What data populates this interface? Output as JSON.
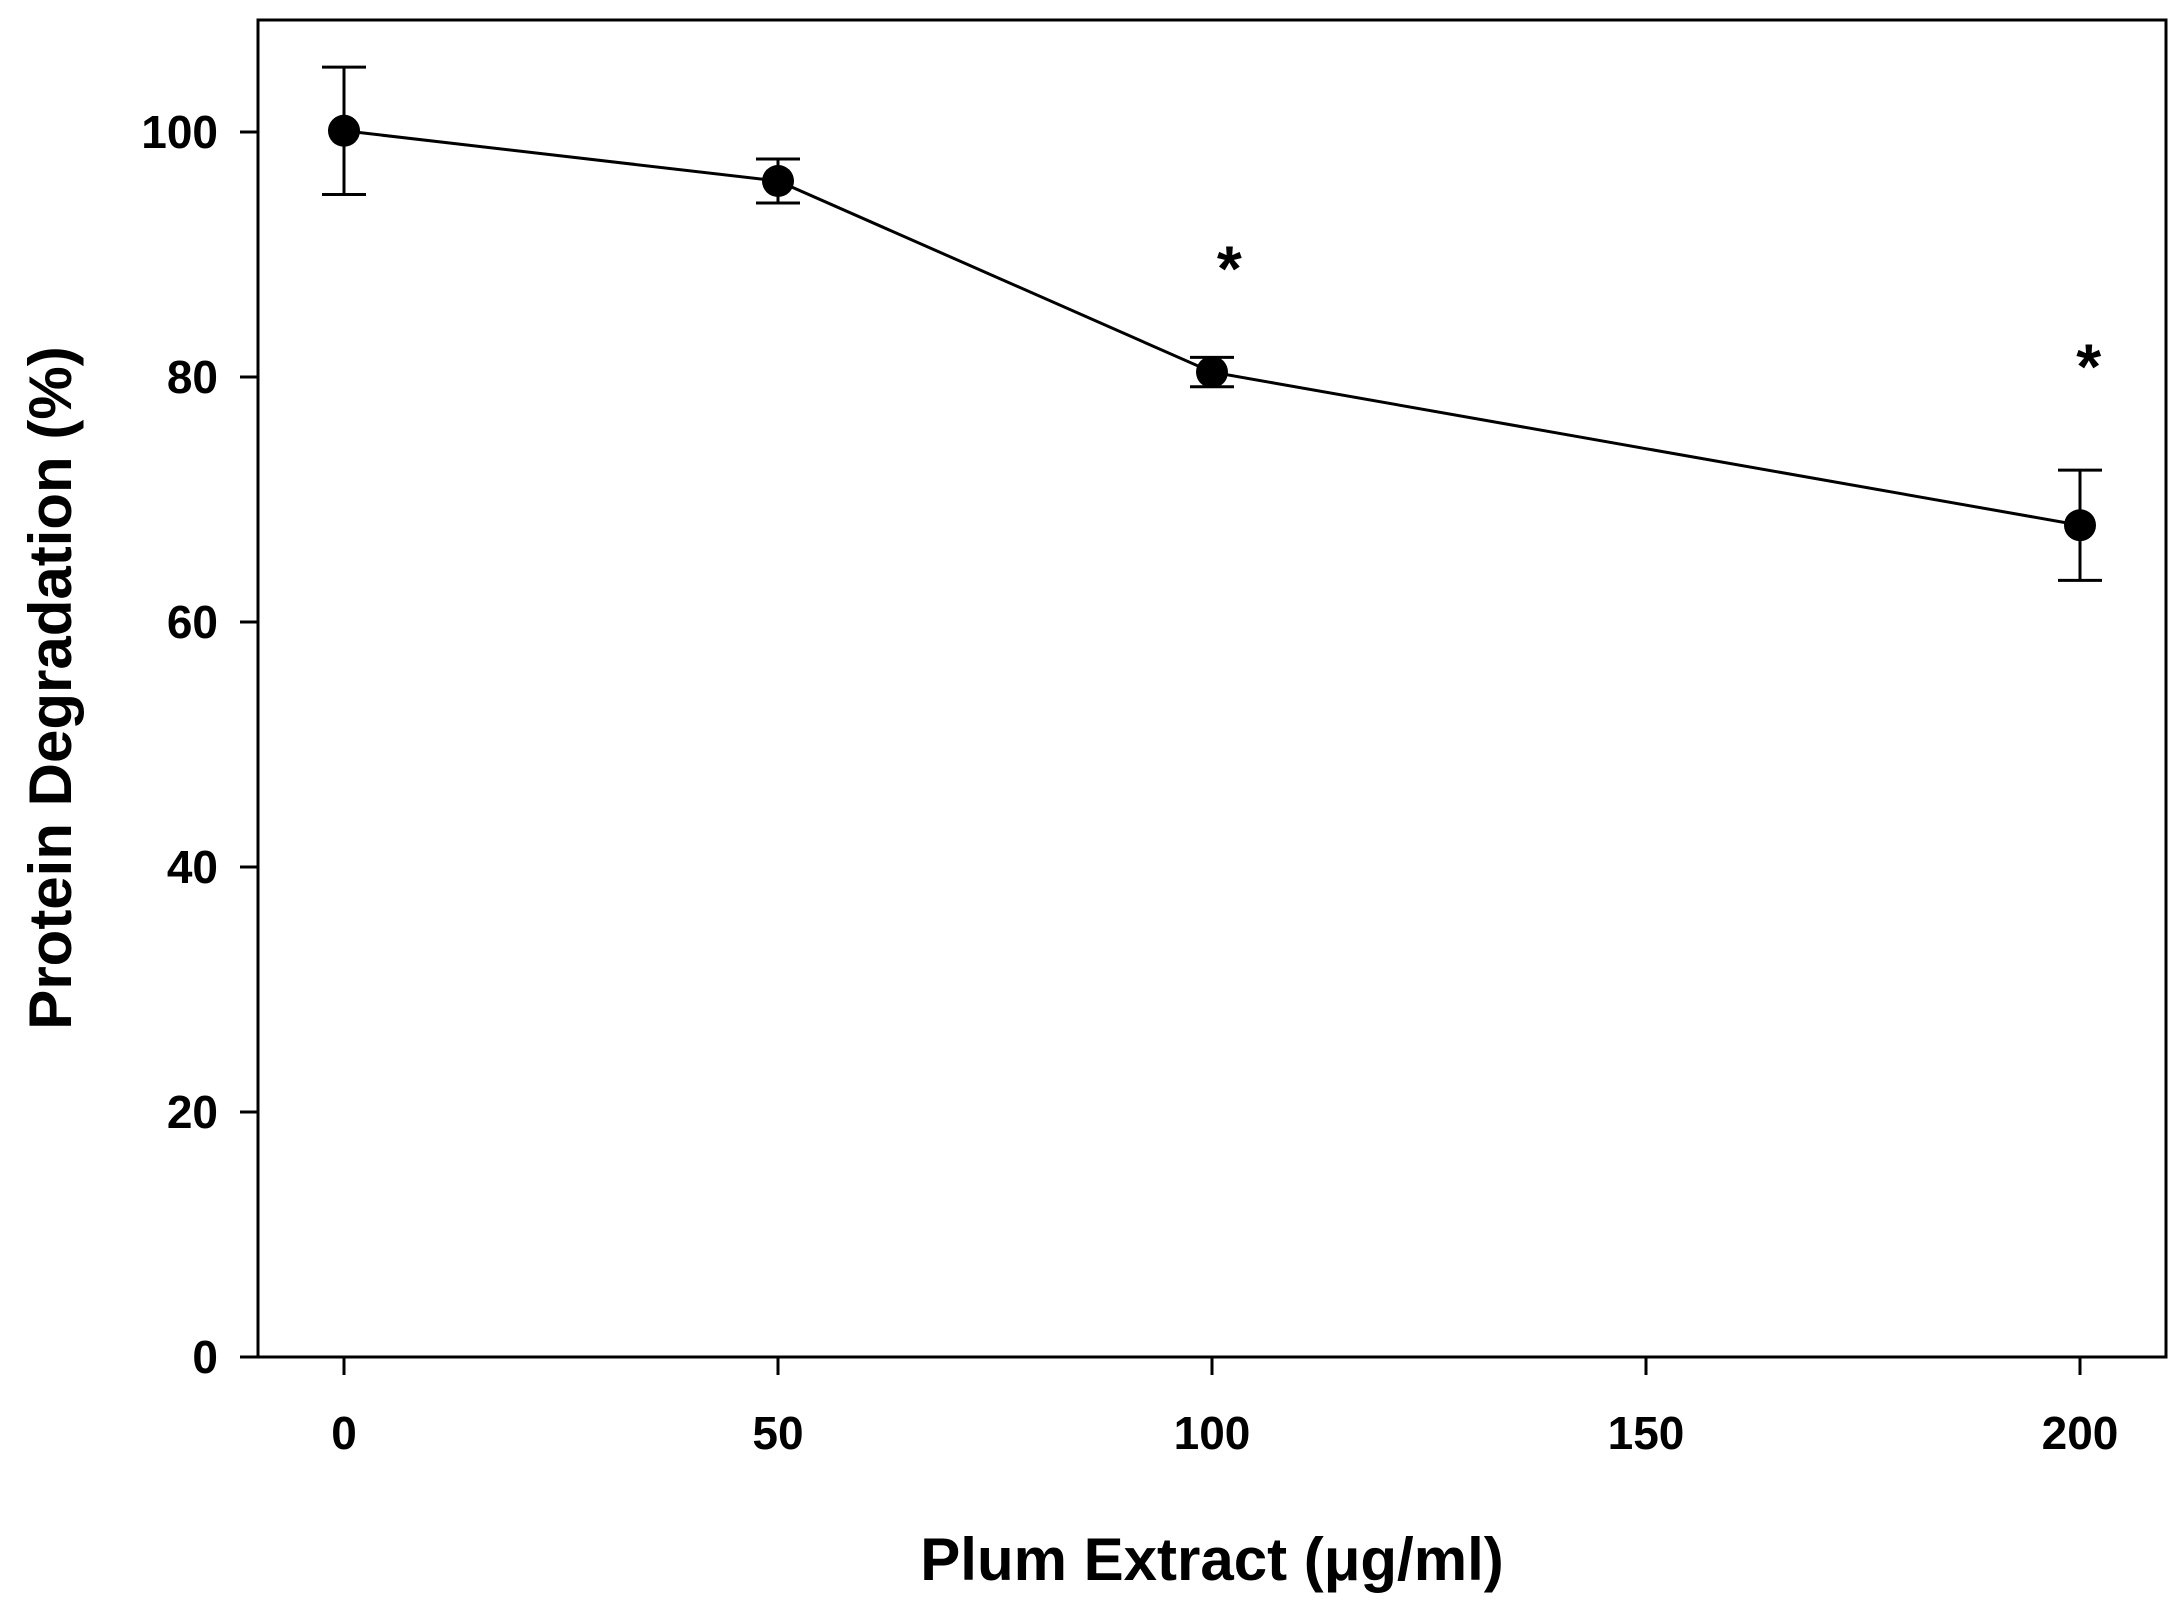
{
  "chart_data": {
    "type": "line",
    "title": "",
    "xlabel": "Plum Extract (μg/ml)",
    "ylabel": "Protein Degradation (%)",
    "xlim": [
      -10,
      210
    ],
    "ylim": [
      0,
      110
    ],
    "x_ticks": [
      0,
      50,
      100,
      150,
      200
    ],
    "y_ticks": [
      0,
      20,
      40,
      60,
      80,
      100
    ],
    "grid": false,
    "legend": "none",
    "series": [
      {
        "x": [
          0,
          50,
          100,
          200
        ],
        "values": [
          100.1,
          96.0,
          80.4,
          67.9
        ],
        "errors": [
          5.2,
          1.8,
          1.2,
          4.5
        ],
        "marker": "filled-circle",
        "color": "#000000"
      }
    ],
    "annotations": [
      {
        "text": "*",
        "x": 102,
        "y": 89.5
      },
      {
        "text": "*",
        "x": 201,
        "y": 81.5
      }
    ]
  }
}
